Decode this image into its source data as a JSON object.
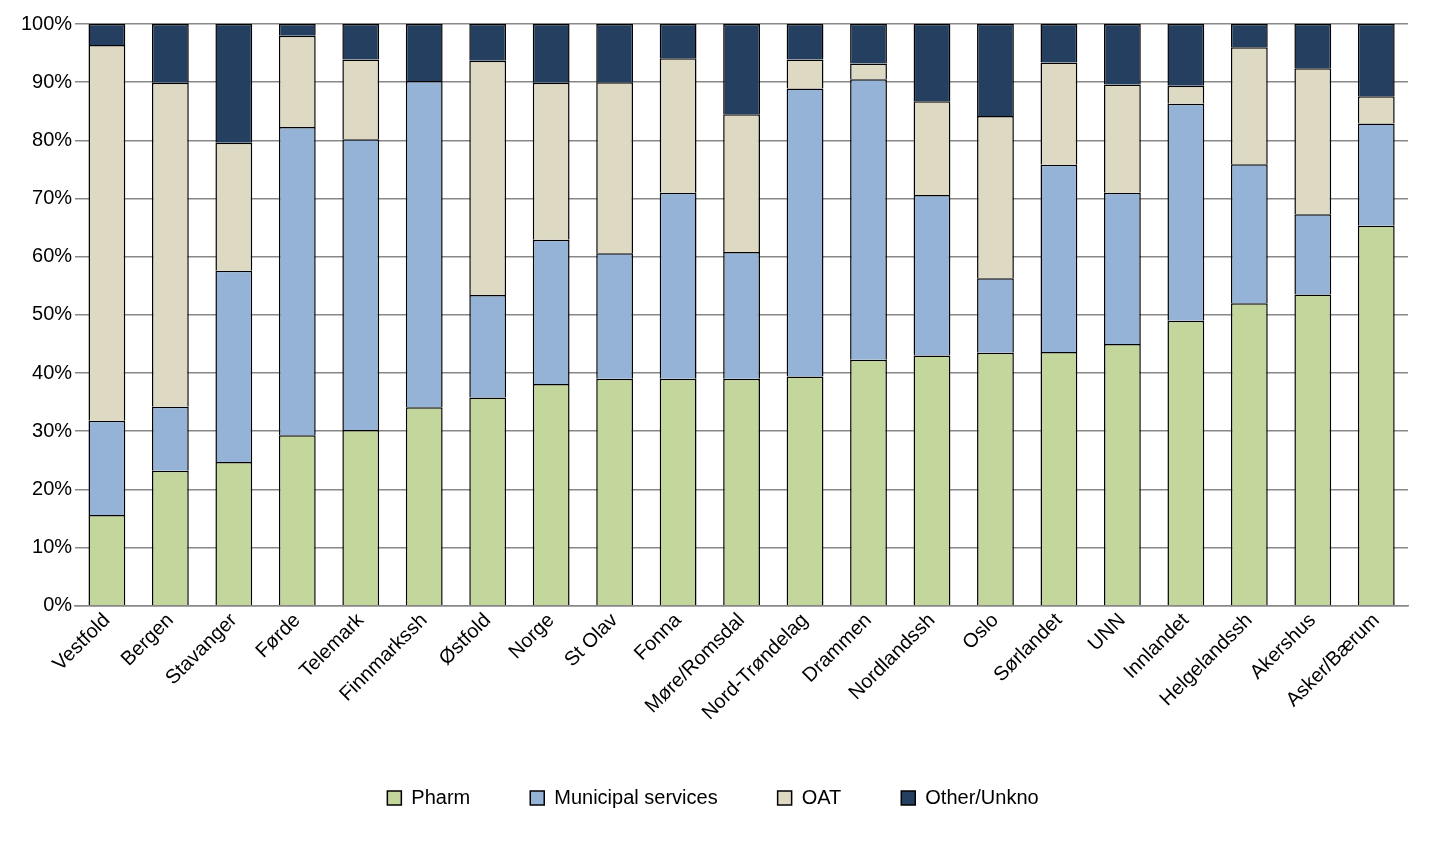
{
  "chart_data": {
    "type": "bar",
    "stacked": true,
    "categories": [
      "Vestfold",
      "Bergen",
      "Stavanger",
      "Førde",
      "Telemark",
      "Finnmarkssh",
      "Østfold",
      "Norge",
      "St Olav",
      "Fonna",
      "Møre/Romsdal",
      "Nord-Trøndelag",
      "Drammen",
      "Nordlandssh",
      "Oslo",
      "Sørlandet",
      "UNN",
      "Innlandet",
      "Helgelandssh",
      "Akershus",
      "Asker/Bærum"
    ],
    "series": [
      {
        "name": "Pharm",
        "color": "#c3d69b",
        "values": [
          15.6,
          23.2,
          24.7,
          29.3,
          30.2,
          34.1,
          35.8,
          38.1,
          39.0,
          39.0,
          39.0,
          39.4,
          42.3,
          43.0,
          43.5,
          43.6,
          45.0,
          49.0,
          52.0,
          53.5,
          65.3
        ]
      },
      {
        "name": "Municipal services",
        "color": "#95b3d7",
        "values": [
          16.2,
          11.0,
          32.9,
          53.0,
          50.0,
          56.1,
          17.6,
          24.8,
          21.6,
          32.0,
          21.8,
          49.5,
          48.2,
          27.6,
          12.8,
          32.2,
          26.0,
          37.3,
          23.9,
          13.8,
          17.6
        ]
      },
      {
        "name": "OAT",
        "color": "#ddd9c3",
        "values": [
          64.6,
          55.7,
          22.0,
          15.7,
          13.7,
          0,
          40.3,
          27.0,
          29.4,
          23.1,
          23.7,
          5.0,
          2.7,
          16.1,
          27.9,
          17.6,
          18.6,
          3.1,
          20.1,
          25.1,
          4.7
        ]
      },
      {
        "name": "Other/Unkno",
        "color": "#243f60",
        "values": [
          3.6,
          10.1,
          20.4,
          2.0,
          6.1,
          9.8,
          6.3,
          10.1,
          10.0,
          5.9,
          15.5,
          6.1,
          6.8,
          13.3,
          15.8,
          6.6,
          10.4,
          10.6,
          4.0,
          7.6,
          12.4
        ]
      }
    ],
    "ylim": [
      0,
      100
    ],
    "yticks": [
      {
        "value": 0,
        "label": "0%"
      },
      {
        "value": 10,
        "label": "10%"
      },
      {
        "value": 20,
        "label": "20%"
      },
      {
        "value": 30,
        "label": "30%"
      },
      {
        "value": 40,
        "label": "40%"
      },
      {
        "value": 50,
        "label": "50%"
      },
      {
        "value": 60,
        "label": "60%"
      },
      {
        "value": 70,
        "label": "70%"
      },
      {
        "value": 80,
        "label": "80%"
      },
      {
        "value": 90,
        "label": "90%"
      },
      {
        "value": 100,
        "label": "100%"
      }
    ],
    "grid": "y",
    "legend": "bottom"
  }
}
